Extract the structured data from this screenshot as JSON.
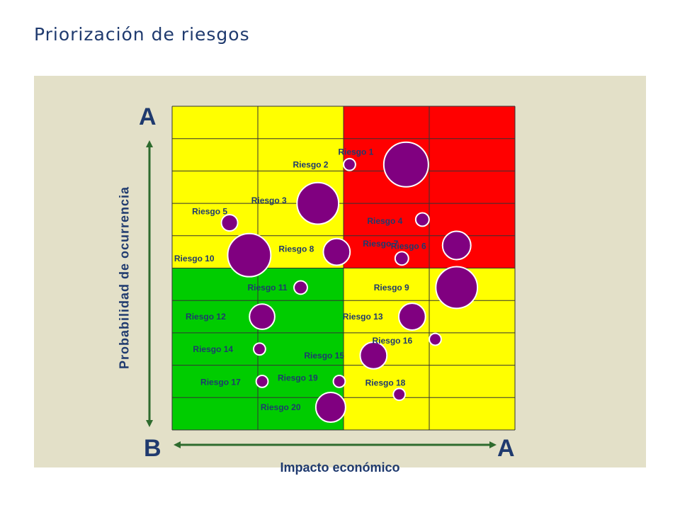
{
  "title": "Priorización de riesgos",
  "axis": {
    "y_label": "Probabilidad de ocurrencia",
    "x_label": "Impacto económico",
    "y_top_letter": "A",
    "y_bottom_letter": "B",
    "x_right_letter": "A"
  },
  "colors": {
    "green": "#00cc00",
    "yellow": "#ffff00",
    "red": "#ff0000",
    "bubble": "#800080",
    "arrow": "#2e6b2e",
    "text": "#1f3a6e",
    "panel": "#e3e0c8"
  },
  "chart_data": {
    "type": "scatter",
    "title": "Priorización de riesgos",
    "xlabel": "Impacto económico",
    "ylabel": "Probabilidad de ocurrencia",
    "xlim": [
      0,
      4
    ],
    "ylim": [
      0,
      10
    ],
    "grid": true,
    "zones": [
      {
        "color": "green",
        "x": [
          0,
          2
        ],
        "y": [
          0,
          5
        ]
      },
      {
        "color": "yellow",
        "x": [
          0,
          2
        ],
        "y": [
          5,
          10
        ]
      },
      {
        "color": "yellow",
        "x": [
          2,
          4
        ],
        "y": [
          0,
          5
        ]
      },
      {
        "color": "red",
        "x": [
          2,
          4
        ],
        "y": [
          5,
          10
        ]
      }
    ],
    "points": [
      {
        "label": "Riesgo 1",
        "x": 2.73,
        "y": 8.2,
        "size": 3.0
      },
      {
        "label": "Riesgo 2",
        "x": 2.07,
        "y": 8.2,
        "size": 0.8
      },
      {
        "label": "Riesgo 3",
        "x": 1.7,
        "y": 7.0,
        "size": 2.8
      },
      {
        "label": "Riesgo 4",
        "x": 2.92,
        "y": 6.5,
        "size": 0.9
      },
      {
        "label": "Riesgo 5",
        "x": 0.67,
        "y": 6.4,
        "size": 1.1
      },
      {
        "label": "Riesgo 6",
        "x": 3.32,
        "y": 5.7,
        "size": 1.9
      },
      {
        "label": "Riesgo 7",
        "x": 2.68,
        "y": 5.3,
        "size": 0.9
      },
      {
        "label": "Riesgo 8",
        "x": 1.92,
        "y": 5.5,
        "size": 1.8
      },
      {
        "label": "Riesgo 10",
        "x": 0.9,
        "y": 5.4,
        "size": 2.9
      },
      {
        "label": "Riesgo 11",
        "x": 1.5,
        "y": 4.4,
        "size": 0.9
      },
      {
        "label": "Riesgo 9",
        "x": 3.32,
        "y": 4.4,
        "size": 2.8
      },
      {
        "label": "Riesgo 12",
        "x": 1.05,
        "y": 3.5,
        "size": 1.7
      },
      {
        "label": "Riesgo 13",
        "x": 2.8,
        "y": 3.5,
        "size": 1.8
      },
      {
        "label": "Riesgo 16",
        "x": 3.07,
        "y": 2.8,
        "size": 0.8
      },
      {
        "label": "Riesgo 14",
        "x": 1.02,
        "y": 2.5,
        "size": 0.8
      },
      {
        "label": "Riesgo 15",
        "x": 2.35,
        "y": 2.3,
        "size": 1.8
      },
      {
        "label": "Riesgo 17",
        "x": 1.05,
        "y": 1.5,
        "size": 0.8
      },
      {
        "label": "Riesgo 19",
        "x": 1.95,
        "y": 1.5,
        "size": 0.8
      },
      {
        "label": "Riesgo 18",
        "x": 2.65,
        "y": 1.1,
        "size": 0.8
      },
      {
        "label": "Riesgo 20",
        "x": 1.85,
        "y": 0.7,
        "size": 2.0
      }
    ]
  }
}
